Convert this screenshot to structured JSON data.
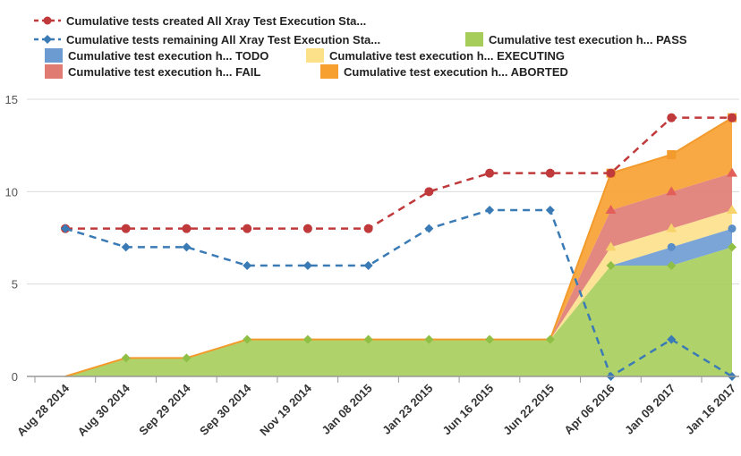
{
  "chart_data": {
    "type": "area",
    "categories": [
      "Aug 28 2014",
      "Aug 30 2014",
      "Sep 29 2014",
      "Sep 30 2014",
      "Nov 19 2014",
      "Jan 08 2015",
      "Jan 23 2015",
      "Jun 16 2015",
      "Jun 22 2015",
      "Apr 06 2016",
      "Jan 09 2017",
      "Jan 16 2017"
    ],
    "ylim": [
      0,
      15
    ],
    "yticks": [
      "0",
      "5",
      "10",
      "15"
    ],
    "grid": true,
    "legend_position": "top",
    "stacked_series": [
      {
        "name": "Cumulative test execution h... PASS",
        "color": "#a6cd5a",
        "values": [
          0,
          1,
          1,
          2,
          2,
          2,
          2,
          2,
          2,
          6,
          6,
          7
        ]
      },
      {
        "name": "Cumulative test execution h... TODO",
        "color": "#6b9bd1",
        "values": [
          0,
          0,
          0,
          0,
          0,
          0,
          0,
          0,
          0,
          0,
          1,
          1
        ]
      },
      {
        "name": "Cumulative test execution h... EXECUTING",
        "color": "#fde08a",
        "values": [
          0,
          0,
          0,
          0,
          0,
          0,
          0,
          0,
          0,
          1,
          1,
          1
        ]
      },
      {
        "name": "Cumulative test execution h... FAIL",
        "color": "#e07b72",
        "values": [
          0,
          0,
          0,
          0,
          0,
          0,
          0,
          0,
          0,
          2,
          2,
          2
        ]
      },
      {
        "name": "Cumulative test execution h... ABORTED",
        "color": "#f7a030",
        "values": [
          0,
          0,
          0,
          0,
          0,
          0,
          0,
          0,
          0,
          2,
          2,
          3
        ]
      }
    ],
    "line_series": [
      {
        "name": "Cumulative tests created All Xray Test Execution Sta...",
        "color": "#c0393b",
        "marker": "circle",
        "values": [
          8,
          8,
          8,
          8,
          8,
          8,
          10,
          11,
          11,
          11,
          14,
          14
        ]
      },
      {
        "name": "Cumulative tests remaining All Xray Test Execution Sta...",
        "color": "#3b7bb5",
        "marker": "diamond",
        "values": [
          8,
          7,
          7,
          6,
          6,
          6,
          8,
          9,
          9,
          0,
          2,
          0
        ]
      }
    ]
  }
}
